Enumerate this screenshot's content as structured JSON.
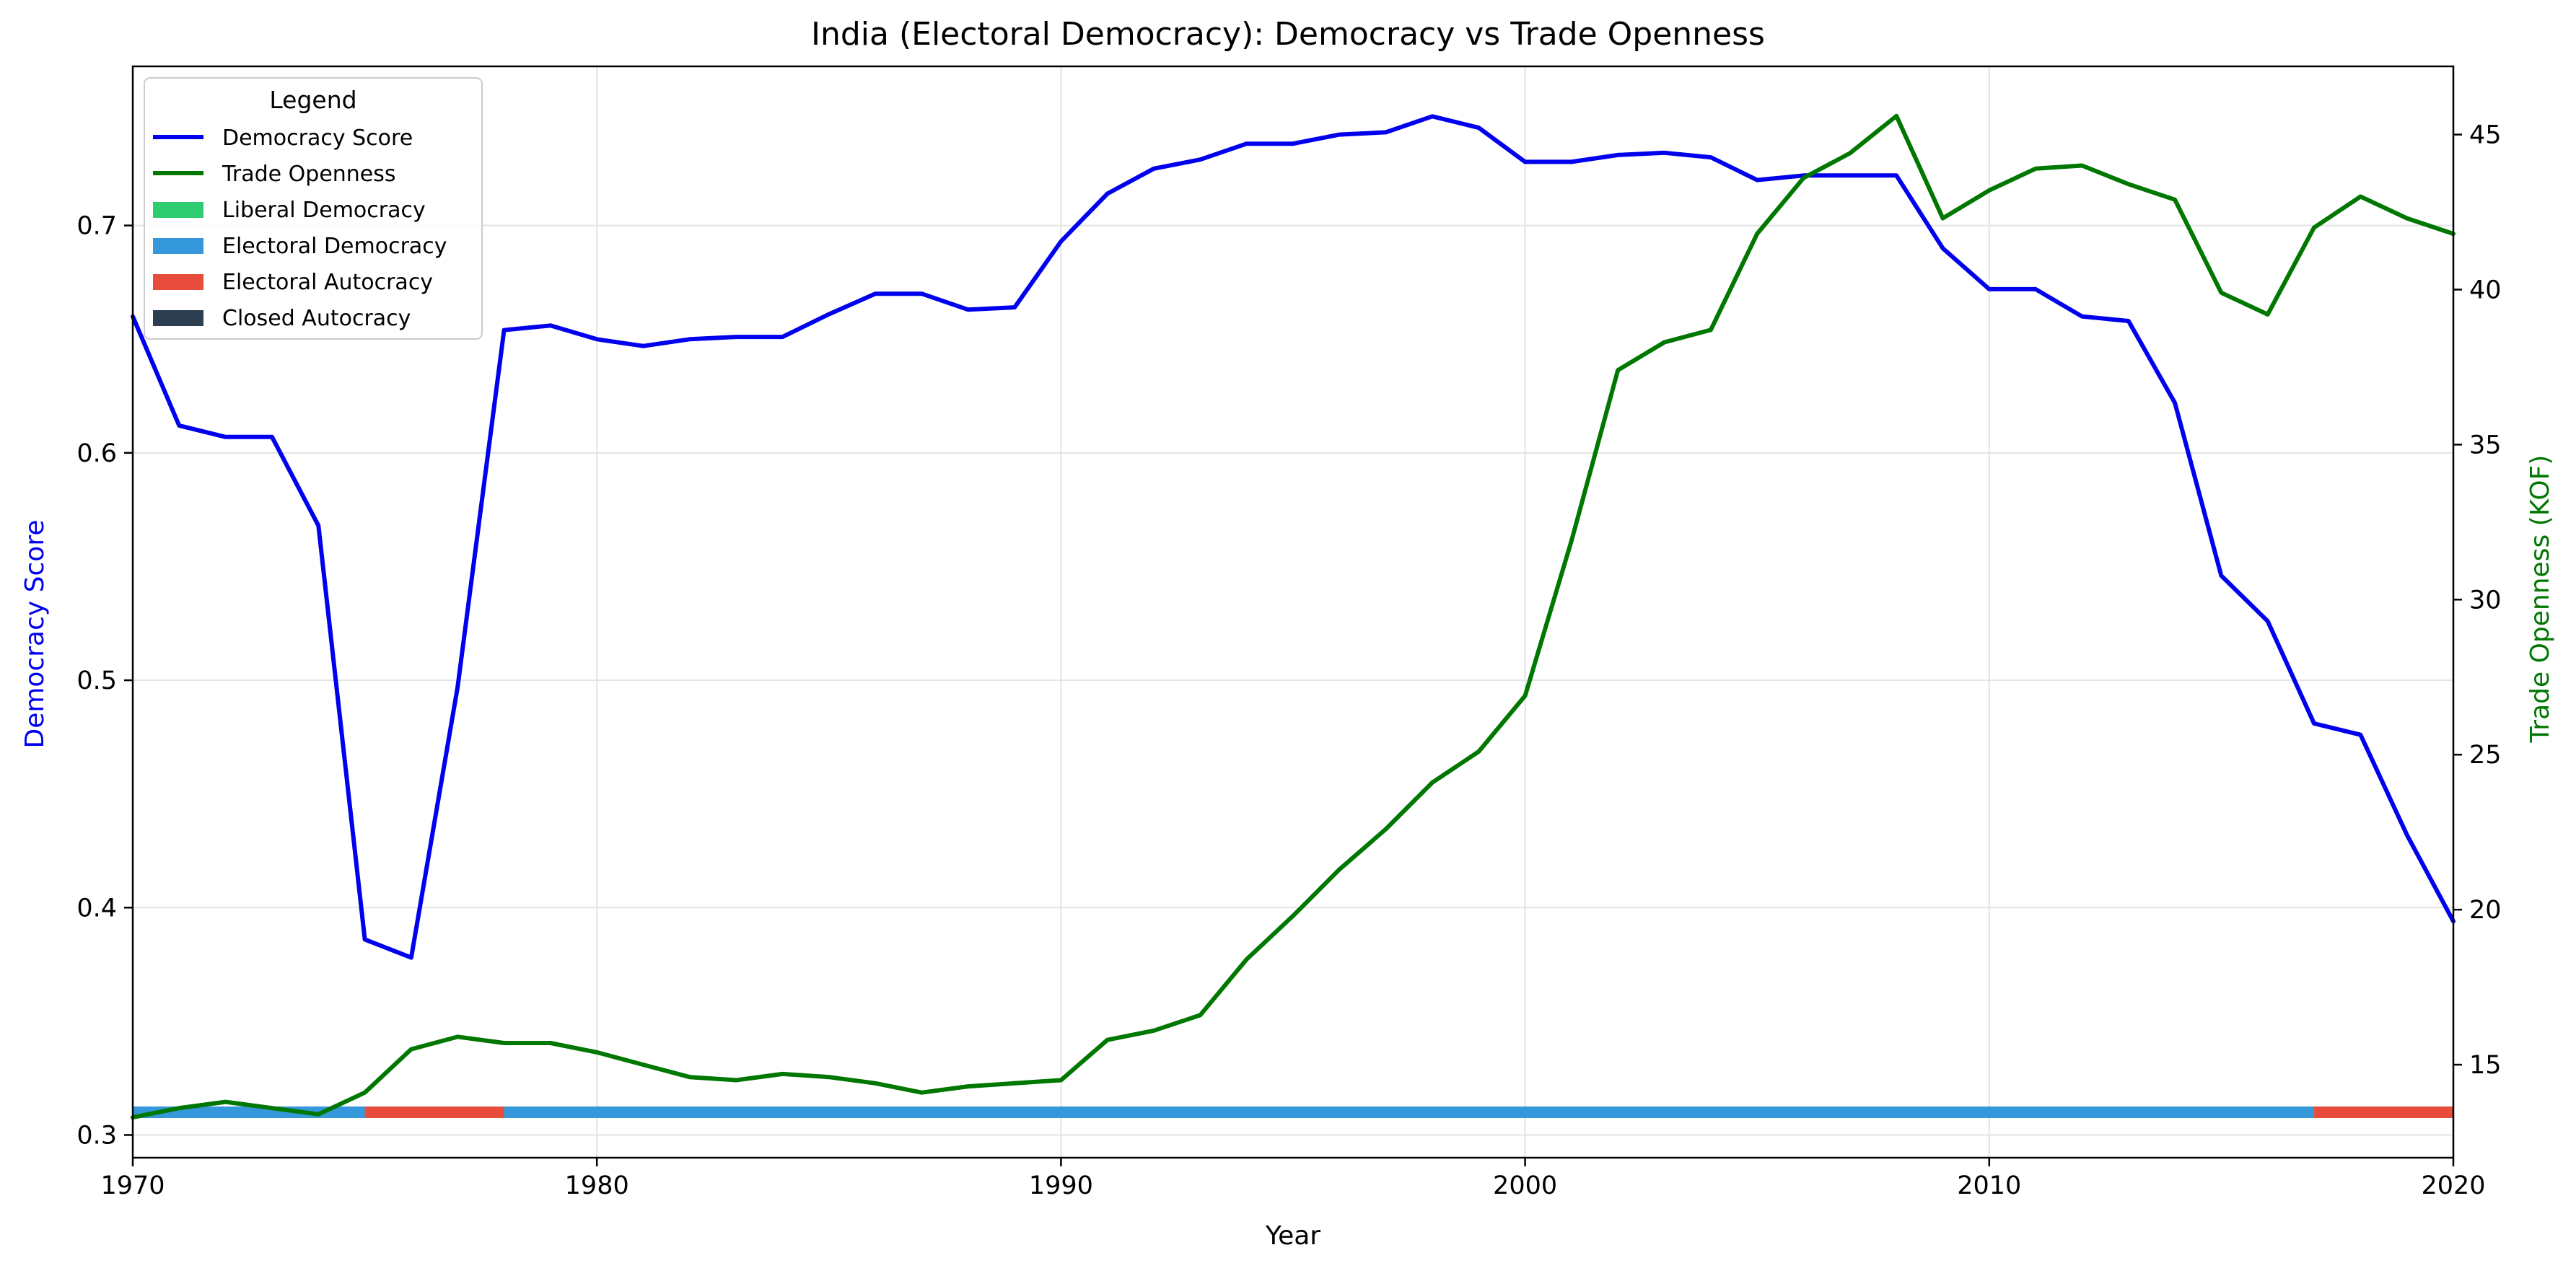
{
  "chart_data": {
    "type": "line",
    "title": "India (Electoral Democracy): Democracy vs Trade Openness",
    "xlabel": "Year",
    "ylabel_left": "Democracy Score",
    "ylabel_right": "Trade Openness (KOF)",
    "xlim": [
      1970,
      2020
    ],
    "ylim_left": [
      0.29,
      0.77
    ],
    "ylim_right": [
      12,
      47.2
    ],
    "x_ticks": [
      1970,
      1980,
      1990,
      2000,
      2010,
      2020
    ],
    "y_left_ticks": [
      0.3,
      0.4,
      0.5,
      0.6,
      0.7
    ],
    "y_right_ticks": [
      15,
      20,
      25,
      30,
      35,
      40,
      45
    ],
    "grid": true,
    "legend_placement": "upper-left",
    "legend_title": "Legend",
    "series": [
      {
        "name": "Democracy Score",
        "axis": "left",
        "color": "#0000ee",
        "x": [
          1970,
          1971,
          1972,
          1973,
          1974,
          1975,
          1976,
          1977,
          1978,
          1979,
          1980,
          1981,
          1982,
          1983,
          1984,
          1985,
          1986,
          1987,
          1988,
          1989,
          1990,
          1991,
          1992,
          1993,
          1994,
          1995,
          1996,
          1997,
          1998,
          1999,
          2000,
          2001,
          2002,
          2003,
          2004,
          2005,
          2006,
          2007,
          2008,
          2009,
          2010,
          2011,
          2012,
          2013,
          2014,
          2015,
          2016,
          2017,
          2018,
          2019,
          2020
        ],
        "values": [
          0.66,
          0.612,
          0.607,
          0.607,
          0.568,
          0.386,
          0.378,
          0.497,
          0.654,
          0.656,
          0.65,
          0.647,
          0.65,
          0.651,
          0.651,
          0.661,
          0.67,
          0.67,
          0.663,
          0.664,
          0.693,
          0.714,
          0.725,
          0.729,
          0.736,
          0.736,
          0.74,
          0.741,
          0.748,
          0.743,
          0.728,
          0.728,
          0.731,
          0.732,
          0.73,
          0.72,
          0.722,
          0.722,
          0.722,
          0.69,
          0.672,
          0.672,
          0.66,
          0.658,
          0.622,
          0.546,
          0.526,
          0.481,
          0.476,
          0.432,
          0.394
        ]
      },
      {
        "name": "Trade Openness",
        "axis": "right",
        "color": "#007700",
        "x": [
          1970,
          1971,
          1972,
          1973,
          1974,
          1975,
          1976,
          1977,
          1978,
          1979,
          1980,
          1981,
          1982,
          1983,
          1984,
          1985,
          1986,
          1987,
          1988,
          1989,
          1990,
          1991,
          1992,
          1993,
          1994,
          1995,
          1996,
          1997,
          1998,
          1999,
          2000,
          2001,
          2002,
          2003,
          2004,
          2005,
          2006,
          2007,
          2008,
          2009,
          2010,
          2011,
          2012,
          2013,
          2014,
          2015,
          2016,
          2017,
          2018,
          2019,
          2020
        ],
        "values": [
          13.3,
          13.6,
          13.8,
          13.6,
          13.4,
          14.1,
          15.5,
          15.9,
          15.7,
          15.7,
          15.4,
          15.0,
          14.6,
          14.5,
          14.7,
          14.6,
          14.4,
          14.1,
          14.3,
          14.4,
          14.5,
          15.8,
          16.1,
          16.6,
          18.4,
          19.8,
          21.3,
          22.6,
          24.1,
          25.1,
          26.9,
          31.9,
          37.4,
          38.3,
          38.7,
          41.8,
          43.6,
          44.4,
          45.6,
          42.3,
          43.2,
          43.9,
          44.0,
          43.4,
          42.9,
          39.9,
          39.2,
          42.0,
          43.0,
          42.3,
          41.8
        ]
      }
    ],
    "regime_band": {
      "level": 0.31,
      "segments": [
        {
          "from": 1970,
          "to": 1975,
          "regime": "Electoral Democracy"
        },
        {
          "from": 1975,
          "to": 1978,
          "regime": "Electoral Autocracy"
        },
        {
          "from": 1978,
          "to": 2017,
          "regime": "Electoral Democracy"
        },
        {
          "from": 2017,
          "to": 2020,
          "regime": "Electoral Autocracy"
        }
      ]
    },
    "legend": [
      {
        "label": "Democracy Score",
        "kind": "line",
        "color": "#0000ee"
      },
      {
        "label": "Trade Openness",
        "kind": "line",
        "color": "#007700"
      },
      {
        "label": "Liberal Democracy",
        "kind": "patch",
        "color": "#2ecc71"
      },
      {
        "label": "Electoral Democracy",
        "kind": "patch",
        "color": "#3498db"
      },
      {
        "label": "Electoral Autocracy",
        "kind": "patch",
        "color": "#e74c3c"
      },
      {
        "label": "Closed Autocracy",
        "kind": "patch",
        "color": "#2c3e50"
      }
    ],
    "regime_colors": {
      "Liberal Democracy": "#2ecc71",
      "Electoral Democracy": "#3498db",
      "Electoral Autocracy": "#e74c3c",
      "Closed Autocracy": "#2c3e50"
    }
  }
}
